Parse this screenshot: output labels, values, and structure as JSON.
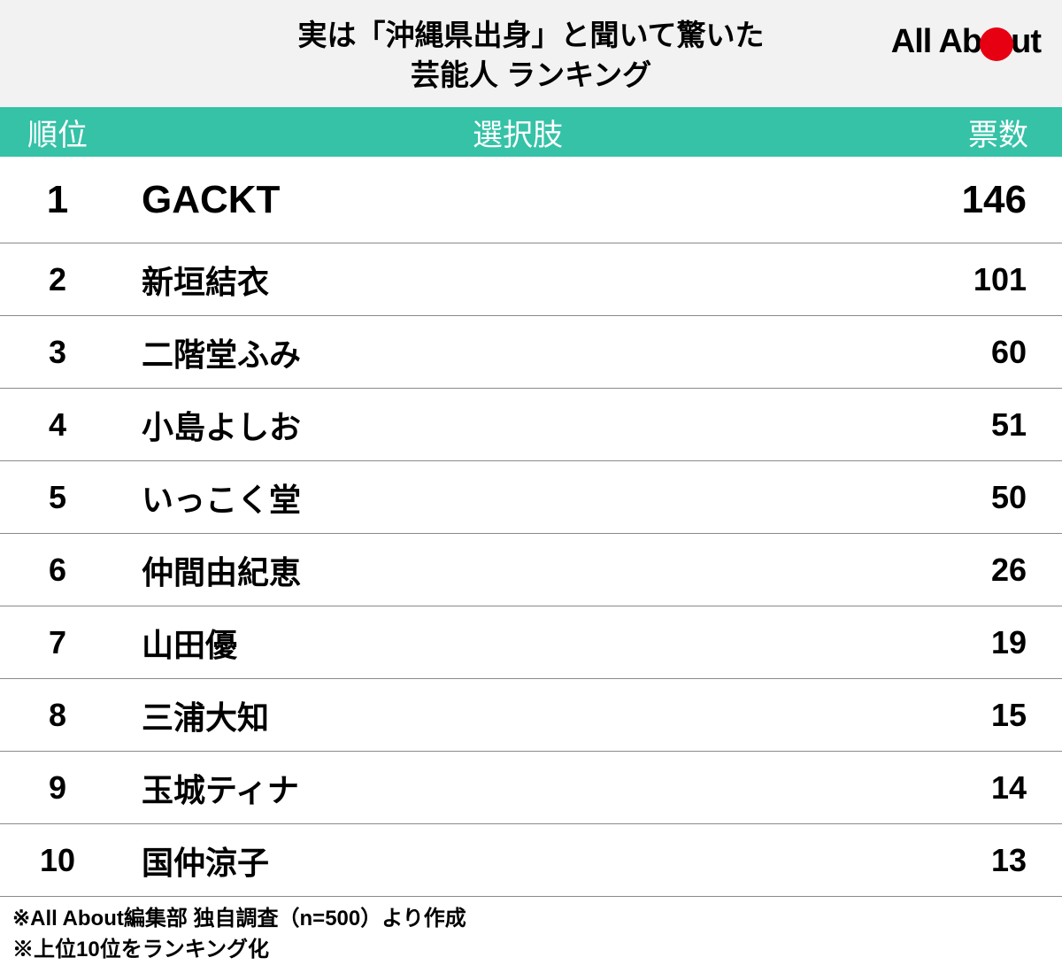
{
  "header": {
    "title": "実は「沖縄県出身」と聞いて驚いた\n芸能人 ランキング",
    "logo_prefix": "All Ab",
    "logo_suffix": "ut"
  },
  "columns": {
    "rank": "順位",
    "choice": "選択肢",
    "votes": "票数"
  },
  "rows": [
    {
      "rank": "1",
      "choice": "GACKT",
      "votes": "146"
    },
    {
      "rank": "2",
      "choice": "新垣結衣",
      "votes": "101"
    },
    {
      "rank": "3",
      "choice": "二階堂ふみ",
      "votes": "60"
    },
    {
      "rank": "4",
      "choice": "小島よしお",
      "votes": "51"
    },
    {
      "rank": "5",
      "choice": "いっこく堂",
      "votes": "50"
    },
    {
      "rank": "6",
      "choice": "仲間由紀恵",
      "votes": "26"
    },
    {
      "rank": "7",
      "choice": "山田優",
      "votes": "19"
    },
    {
      "rank": "8",
      "choice": "三浦大知",
      "votes": "15"
    },
    {
      "rank": "9",
      "choice": "玉城ティナ",
      "votes": "14"
    },
    {
      "rank": "10",
      "choice": "国仲涼子",
      "votes": "13"
    }
  ],
  "footnotes": [
    "※All About編集部 独自調査（n=500）より作成",
    "※上位10位をランキング化"
  ],
  "style": {
    "header_bg": "#f2f2f2",
    "table_header_bg": "#35c2a7",
    "table_header_color": "#ffffff",
    "row_border_color": "#8a8a8a",
    "brand_red": "#e60012",
    "text_color": "#000000",
    "title_fontsize": 33,
    "header_fontsize": 34,
    "first_row_fontsize": 44,
    "row_fontsize": 36,
    "footnote_fontsize": 24
  }
}
